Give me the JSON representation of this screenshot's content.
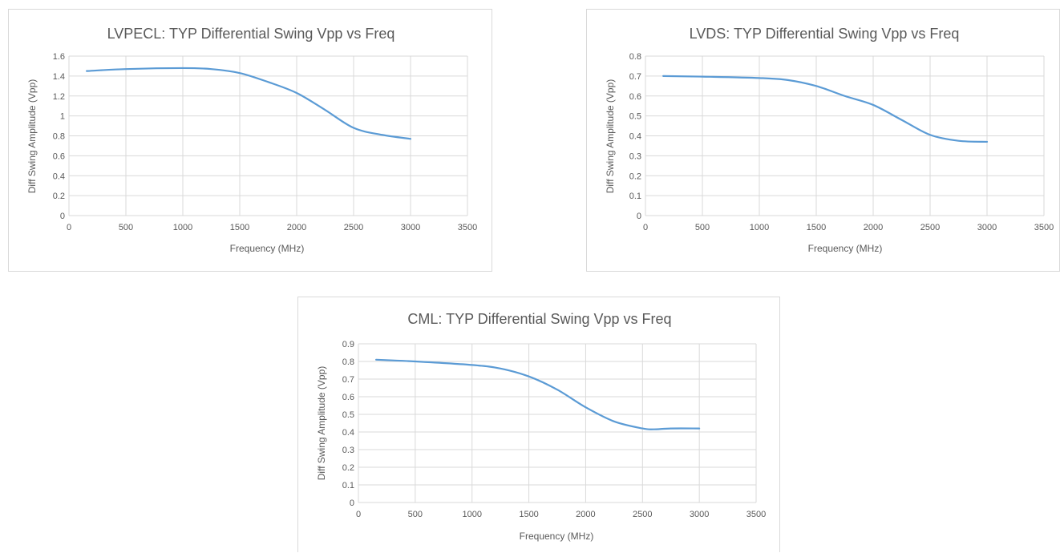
{
  "colors": {
    "series": "#5b9bd5",
    "grid": "#d9d9d9",
    "text": "#595959",
    "border": "#d9d9d9"
  },
  "chart_data": [
    {
      "type": "line",
      "title": "LVPECL: TYP Differential Swing Vpp vs Freq",
      "xlabel": "Frequency (MHz)",
      "ylabel": "Diff Swing Amplitude (Vpp)",
      "xlim": [
        0,
        3500
      ],
      "ylim": [
        0,
        1.6
      ],
      "x_ticks": [
        0,
        500,
        1000,
        1500,
        2000,
        2500,
        3000,
        3500
      ],
      "y_ticks": [
        0,
        0.2,
        0.4,
        0.6,
        0.8,
        1,
        1.2,
        1.4,
        1.6
      ],
      "x_tick_labels": [
        "0",
        "500",
        "1000",
        "1500",
        "2000",
        "2500",
        "3000",
        "3500"
      ],
      "y_tick_labels": [
        "0",
        "0.2",
        "0.4",
        "0.6",
        "0.8",
        "1",
        "1.2",
        "1.4",
        "1.6"
      ],
      "grid": true,
      "series": [
        {
          "x": [
            156,
            500,
            1000,
            1250,
            1500,
            1750,
            2000,
            2250,
            2500,
            2750,
            3000
          ],
          "y": [
            1.45,
            1.47,
            1.48,
            1.47,
            1.43,
            1.34,
            1.23,
            1.06,
            0.88,
            0.81,
            0.77
          ]
        }
      ]
    },
    {
      "type": "line",
      "title": "LVDS: TYP Differential Swing Vpp vs Freq",
      "xlabel": "Frequency (MHz)",
      "ylabel": "Diff Swing Amplitude (Vpp)",
      "xlim": [
        0,
        3500
      ],
      "ylim": [
        0,
        0.8
      ],
      "x_ticks": [
        0,
        500,
        1000,
        1500,
        2000,
        2500,
        3000,
        3500
      ],
      "y_ticks": [
        0,
        0.1,
        0.2,
        0.3,
        0.4,
        0.5,
        0.6,
        0.7,
        0.8
      ],
      "x_tick_labels": [
        "0",
        "500",
        "1000",
        "1500",
        "2000",
        "2500",
        "3000",
        "3500"
      ],
      "y_tick_labels": [
        "0",
        "0.1",
        "0.2",
        "0.3",
        "0.4",
        "0.5",
        "0.6",
        "0.7",
        "0.8"
      ],
      "grid": true,
      "series": [
        {
          "x": [
            156,
            500,
            1000,
            1250,
            1500,
            1750,
            2000,
            2250,
            2500,
            2750,
            3000
          ],
          "y": [
            0.7,
            0.697,
            0.69,
            0.68,
            0.65,
            0.6,
            0.555,
            0.48,
            0.405,
            0.375,
            0.37
          ]
        }
      ]
    },
    {
      "type": "line",
      "title": "CML: TYP Differential Swing Vpp vs Freq",
      "xlabel": "Frequency (MHz)",
      "ylabel": "Diff Swing Amplitude  (Vpp)",
      "xlim": [
        0,
        3500
      ],
      "ylim": [
        0,
        0.9
      ],
      "x_ticks": [
        0,
        500,
        1000,
        1500,
        2000,
        2500,
        3000,
        3500
      ],
      "y_ticks": [
        0,
        0.1,
        0.2,
        0.3,
        0.4,
        0.5,
        0.6,
        0.7,
        0.8,
        0.9
      ],
      "x_tick_labels": [
        "0",
        "500",
        "1000",
        "1500",
        "2000",
        "2500",
        "3000",
        "3500"
      ],
      "y_tick_labels": [
        "0",
        "0.1",
        "0.2",
        "0.3",
        "0.4",
        "0.5",
        "0.6",
        "0.7",
        "0.8",
        "0.9"
      ],
      "grid": true,
      "series": [
        {
          "x": [
            156,
            500,
            1000,
            1250,
            1500,
            1750,
            2000,
            2250,
            2500,
            2600,
            2750,
            3000
          ],
          "y": [
            0.81,
            0.8,
            0.78,
            0.76,
            0.715,
            0.64,
            0.54,
            0.46,
            0.42,
            0.415,
            0.42,
            0.42
          ]
        }
      ]
    }
  ]
}
